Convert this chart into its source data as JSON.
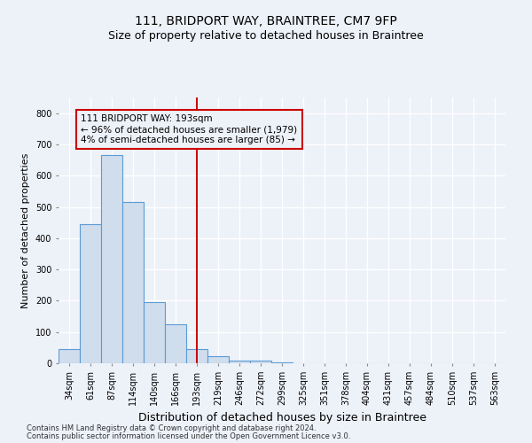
{
  "title": "111, BRIDPORT WAY, BRAINTREE, CM7 9FP",
  "subtitle": "Size of property relative to detached houses in Braintree",
  "xlabel": "Distribution of detached houses by size in Braintree",
  "ylabel": "Number of detached properties",
  "bin_labels": [
    "34sqm",
    "61sqm",
    "87sqm",
    "114sqm",
    "140sqm",
    "166sqm",
    "193sqm",
    "219sqm",
    "246sqm",
    "272sqm",
    "299sqm",
    "325sqm",
    "351sqm",
    "378sqm",
    "404sqm",
    "431sqm",
    "457sqm",
    "484sqm",
    "510sqm",
    "537sqm",
    "563sqm"
  ],
  "bar_heights": [
    45,
    445,
    665,
    515,
    195,
    125,
    45,
    22,
    8,
    8,
    4,
    0,
    0,
    0,
    0,
    0,
    0,
    0,
    0,
    0,
    0
  ],
  "bar_color": "#cfdded",
  "bar_edge_color": "#5b9bd5",
  "highlight_index": 6,
  "highlight_line_color": "#cc0000",
  "annotation_box_color": "#cc0000",
  "annotation_line1": "111 BRIDPORT WAY: 193sqm",
  "annotation_line2": "← 96% of detached houses are smaller (1,979)",
  "annotation_line3": "4% of semi-detached houses are larger (85) →",
  "ylim": [
    0,
    850
  ],
  "yticks": [
    0,
    100,
    200,
    300,
    400,
    500,
    600,
    700,
    800
  ],
  "footnote1": "Contains HM Land Registry data © Crown copyright and database right 2024.",
  "footnote2": "Contains public sector information licensed under the Open Government Licence v3.0.",
  "bg_color": "#edf1f8",
  "grid_color": "#ffffff",
  "title_fontsize": 10,
  "subtitle_fontsize": 9,
  "ylabel_fontsize": 8,
  "xlabel_fontsize": 9,
  "tick_fontsize": 7,
  "annot_fontsize": 7.5,
  "footnote_fontsize": 6
}
